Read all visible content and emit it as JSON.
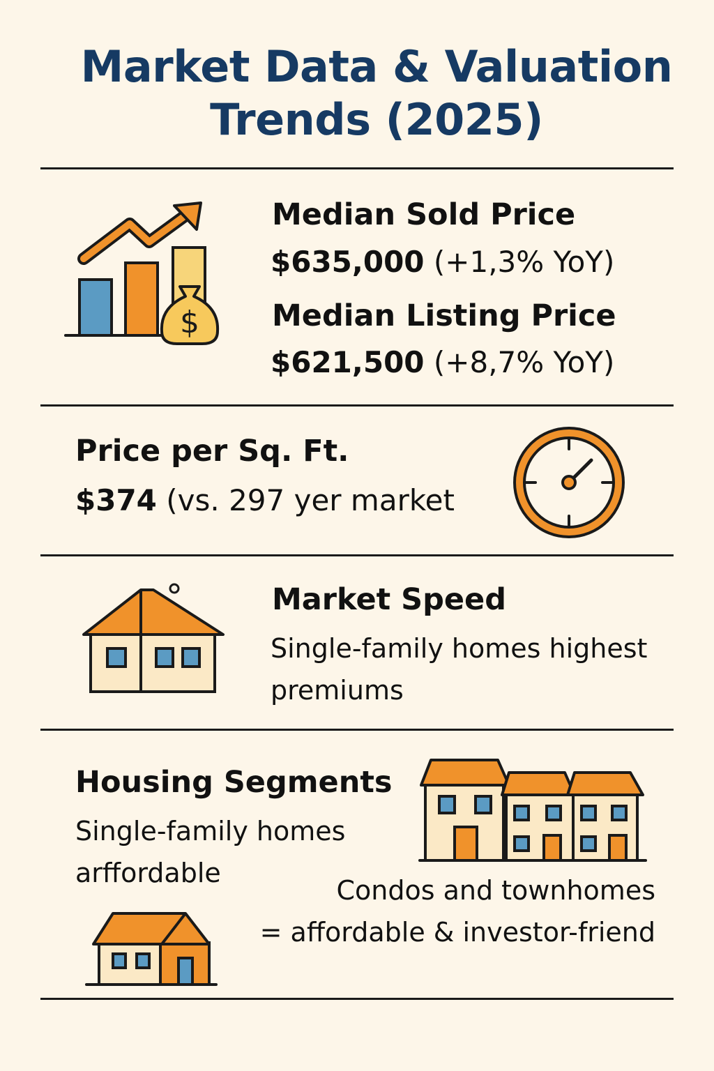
{
  "title_line1": "Market Data & Valuation",
  "title_line2": "Trends (2025)",
  "colors": {
    "title": "#163a63",
    "accent_orange": "#f0922b",
    "bar_blue": "#5b9bc3",
    "bar_yellow": "#f7d57a",
    "house_wall": "#fbe9c6",
    "outline": "#1a1a1a",
    "background": "#fdf6e9"
  },
  "icons": {
    "growth_chart": "growth-chart-with-money-bag-icon",
    "gauge": "clock-gauge-icon",
    "house": "house-icon",
    "townhouses": "row-of-townhouses-icon",
    "small_house": "small-house-icon"
  },
  "sections": {
    "prices": {
      "sold_heading": "Median Sold Price",
      "sold_value": "$635,000",
      "sold_change": "(+1,3% YoY)",
      "listing_heading": "Median Listing Price",
      "listing_value": "$621,500",
      "listing_change": "(+8,7% YoY)"
    },
    "price_per_sqft": {
      "heading": "Price per Sq. Ft.",
      "value": "$374",
      "comparison": "(vs. 297 yer market"
    },
    "market_speed": {
      "heading": "Market Speed",
      "text": "Single-family homes highest premiums"
    },
    "housing_segments": {
      "heading": "Housing Segments",
      "single_family_text": "Single-family homes arffordable",
      "condos_line1": "Condos and townhomes",
      "condos_line2": "= affordable & investor-friend"
    }
  }
}
